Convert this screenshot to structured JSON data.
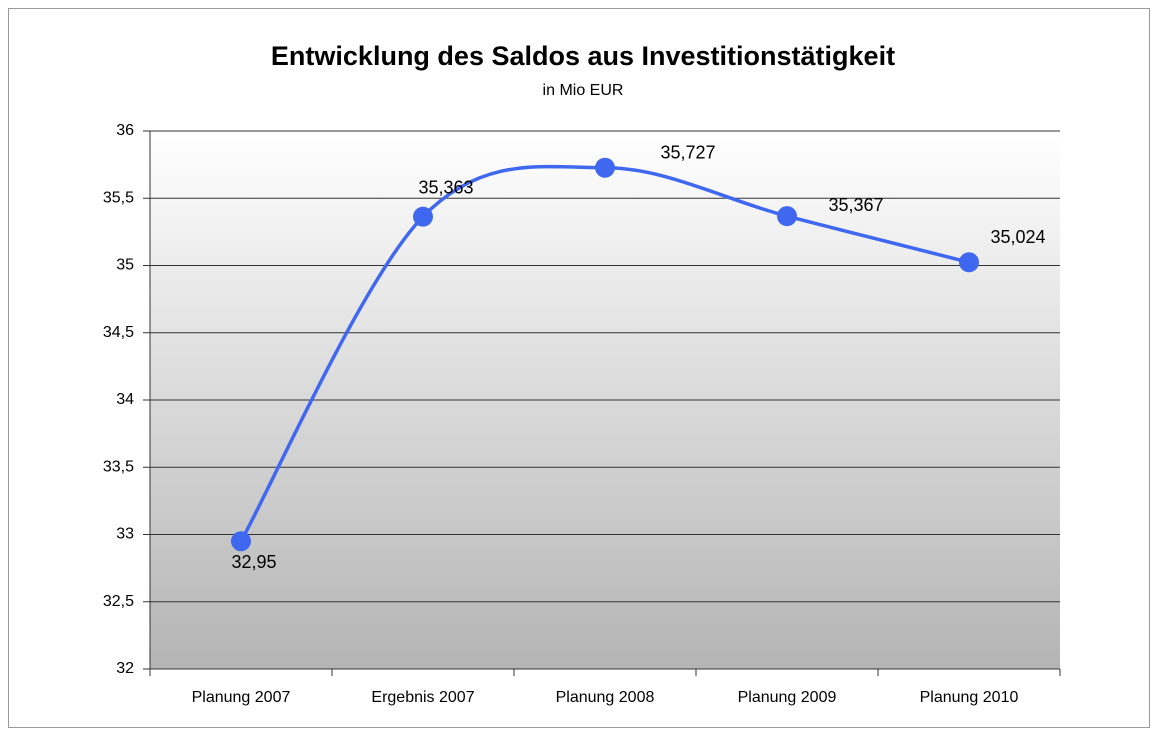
{
  "chart_data": {
    "type": "line",
    "title": "Entwicklung des Saldos aus Investitionstätigkeit",
    "subtitle": "in Mio EUR",
    "categories": [
      "Planung 2007",
      "Ergebnis 2007",
      "Planung 2008",
      "Planung 2009",
      "Planung 2010"
    ],
    "values": [
      32.95,
      35.363,
      35.727,
      35.367,
      35.024
    ],
    "value_labels": [
      "32,95",
      "35,363",
      "35,727",
      "35,367",
      "35,024"
    ],
    "color": "#3f67f0",
    "ylim": [
      32,
      36
    ],
    "yticks": [
      32,
      {
        "value": 32.5,
        "label": "32,5"
      },
      33,
      {
        "value": 33.5,
        "label": "33,5"
      },
      34,
      {
        "value": 34.5,
        "label": "34,5"
      },
      35,
      {
        "value": 35.5,
        "label": "35,5"
      },
      36
    ],
    "grid": true
  }
}
